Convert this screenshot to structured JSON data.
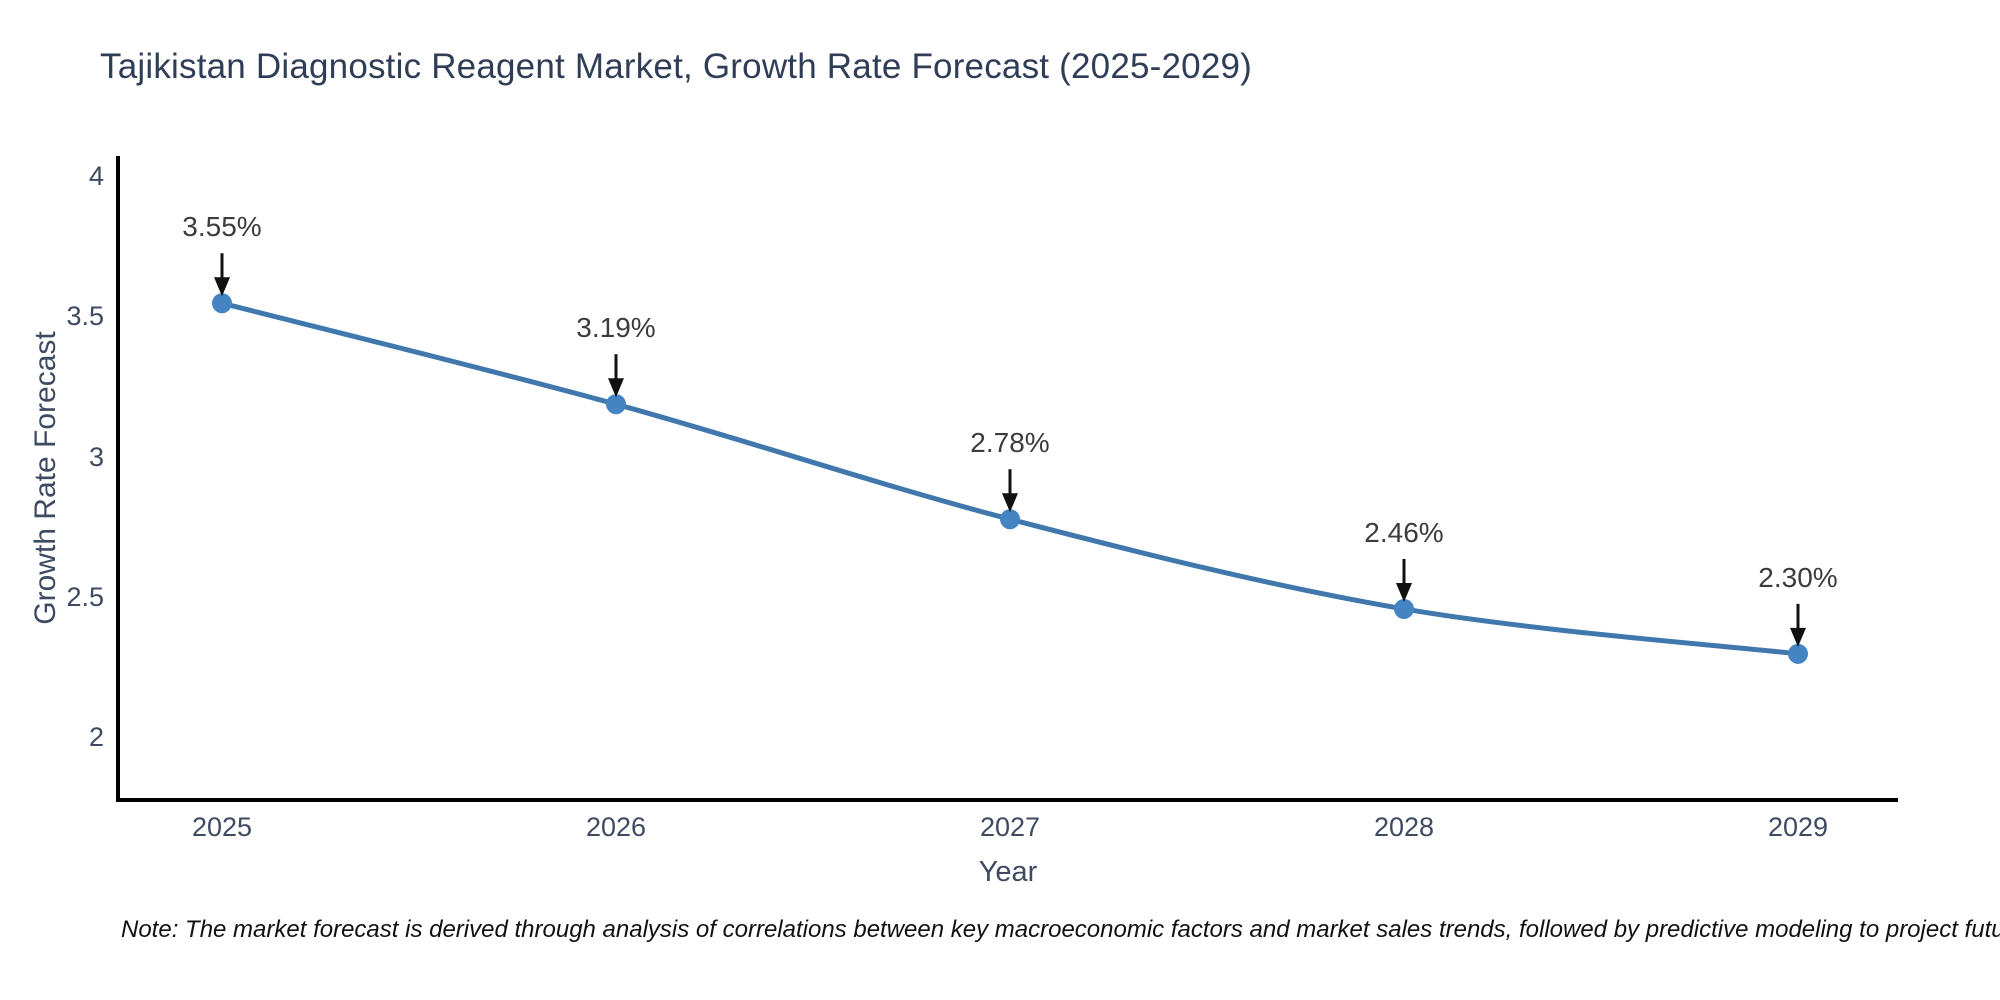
{
  "title": "Tajikistan Diagnostic Reagent Market, Growth Rate Forecast (2025-2029)",
  "x_axis": {
    "title": "Year",
    "ticks": [
      "2025",
      "2026",
      "2027",
      "2028",
      "2029"
    ]
  },
  "y_axis": {
    "title": "Growth Rate Forecast",
    "ticks": [
      "4",
      "3.5",
      "3",
      "2.5",
      "2"
    ]
  },
  "note": "Note: The market forecast is derived through analysis of correlations between key macroeconomic factors and market sales trends, followed by predictive modeling to project future sales",
  "colors": {
    "line": "#4078ad",
    "marker": "#4484c2",
    "axis": "#000000",
    "arrow": "#111111",
    "title_text": "#2f3e56",
    "axis_title_text": "#3e4a61",
    "tick_text": "#3e4a61",
    "annotation_text": "#3c3c3c"
  },
  "chart_data": {
    "type": "line",
    "x": [
      2025,
      2026,
      2027,
      2028,
      2029
    ],
    "values": [
      3.55,
      3.19,
      2.78,
      2.46,
      2.3
    ],
    "point_labels": [
      "3.55%",
      "3.19%",
      "2.78%",
      "2.46%",
      "2.30%"
    ],
    "series_name": "Growth Rate Forecast",
    "title": "Tajikistan Diagnostic Reagent Market, Growth Rate Forecast (2025-2029)",
    "xlabel": "Year",
    "ylabel": "Growth Rate Forecast",
    "ylim": [
      2,
      4
    ],
    "yticks": [
      2,
      2.5,
      3,
      3.5,
      4
    ],
    "grid": false,
    "legend": false,
    "smooth": true,
    "marker": "circle"
  }
}
